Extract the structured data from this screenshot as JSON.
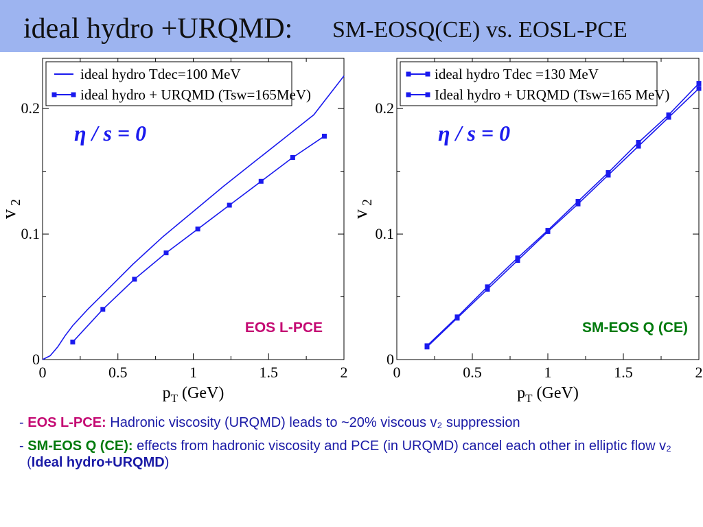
{
  "slide": {
    "title_main": "ideal hydro +URQMD:",
    "title_sub": "SM-EOSQ(CE) vs. EOSL-PCE"
  },
  "bullets": [
    {
      "dash": "-",
      "label": "EOS L-PCE:",
      "text": "Hadronic viscosity (URQMD) leads to ~20% viscous v₂ suppression"
    },
    {
      "dash": "-",
      "label": "SM-EOS Q (CE):",
      "text": "effects from hadronic viscosity and PCE (in URQMD) cancel each other in elliptic flow v₂",
      "paren_open": "(",
      "paren_label": "Ideal hydro+URQMD",
      "paren_close": ")"
    }
  ],
  "colors": {
    "series": "#1a1aee",
    "eos_lpce": "#c40a73",
    "sm_eosq": "#007a0c",
    "title_bg": "#9db4f0"
  },
  "chart_data": [
    {
      "type": "line",
      "xlabel": "p_T (GeV)",
      "ylabel": "v_2",
      "xlim": [
        0,
        2
      ],
      "ylim": [
        0,
        0.24
      ],
      "xticks": [
        "0",
        "0.5",
        "1",
        "1.5",
        "2"
      ],
      "yticks": [
        "0",
        "0.1",
        "0.2"
      ],
      "annotation_eta": "η / s = 0",
      "annotation_eos": "EOS L-PCE",
      "legend_position": "top-left",
      "series": [
        {
          "name": "ideal hydro Tdec=100 MeV",
          "marker": "none",
          "x": [
            0,
            0.05,
            0.1,
            0.15,
            0.2,
            0.3,
            0.4,
            0.5,
            0.6,
            0.7,
            0.8,
            1.0,
            1.2,
            1.4,
            1.6,
            1.8,
            2.0
          ],
          "y": [
            0,
            0.003,
            0.01,
            0.019,
            0.027,
            0.04,
            0.052,
            0.064,
            0.076,
            0.087,
            0.098,
            0.118,
            0.138,
            0.157,
            0.176,
            0.195,
            0.226
          ]
        },
        {
          "name": "ideal hydro + URQMD (Tsw=165MeV)",
          "marker": "square",
          "x": [
            0.2,
            0.4,
            0.61,
            0.82,
            1.03,
            1.24,
            1.45,
            1.66,
            1.87
          ],
          "y": [
            0.014,
            0.04,
            0.064,
            0.085,
            0.104,
            0.123,
            0.142,
            0.161,
            0.178
          ]
        }
      ]
    },
    {
      "type": "line",
      "xlabel": "p_T (GeV)",
      "ylabel": "v_2",
      "xlim": [
        0,
        2
      ],
      "ylim": [
        0,
        0.24
      ],
      "xticks": [
        "0",
        "0.5",
        "1",
        "1.5",
        "2"
      ],
      "yticks": [
        "0",
        "0.1",
        "0.2"
      ],
      "annotation_eta": "η / s = 0",
      "annotation_eos": "SM-EOS Q (CE)",
      "legend_position": "top-left",
      "series": [
        {
          "name": "ideal hydro Tdec =130 MeV",
          "marker": "square",
          "x": [
            0.2,
            0.4,
            0.6,
            0.8,
            1.0,
            1.2,
            1.4,
            1.6,
            1.8,
            2.0
          ],
          "y": [
            0.011,
            0.034,
            0.058,
            0.081,
            0.103,
            0.126,
            0.149,
            0.173,
            0.195,
            0.22
          ]
        },
        {
          "name": "Ideal hydro + URQMD (Tsw=165 MeV)",
          "marker": "square",
          "x": [
            0.2,
            0.4,
            0.6,
            0.8,
            1.0,
            1.2,
            1.4,
            1.6,
            1.8,
            2.0
          ],
          "y": [
            0.01,
            0.033,
            0.056,
            0.079,
            0.102,
            0.124,
            0.147,
            0.17,
            0.193,
            0.216
          ]
        }
      ]
    }
  ]
}
